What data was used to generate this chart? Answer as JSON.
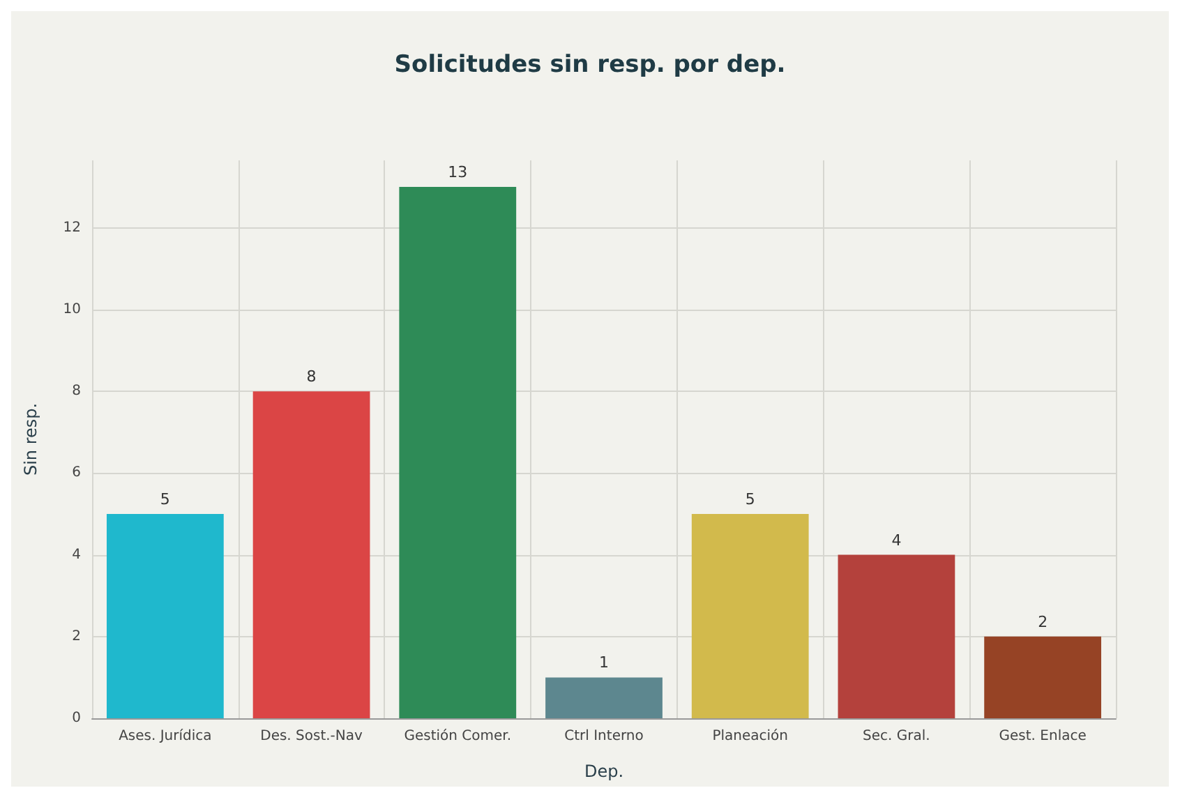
{
  "chart_data": {
    "type": "bar",
    "title": "Solicitudes sin resp. por dep.",
    "xlabel": "Dep.",
    "ylabel": "Sin resp.",
    "categories": [
      "Ases. Jurídica",
      "Des. Sost.-Nav",
      "Gestión Comer.",
      "Ctrl Interno",
      "Planeación",
      "Sec. Gral.",
      "Gest. Enlace"
    ],
    "values": [
      5,
      8,
      13,
      1,
      5,
      4,
      2
    ],
    "colors": [
      "#1fb8cd",
      "#db4545",
      "#2e8b57",
      "#5d878f",
      "#d2ba4c",
      "#b4413c",
      "#964325"
    ],
    "ylim": [
      0,
      13.65
    ],
    "yticks": [
      0,
      2,
      4,
      6,
      8,
      10,
      12
    ],
    "grid": true,
    "data_labels": true
  }
}
